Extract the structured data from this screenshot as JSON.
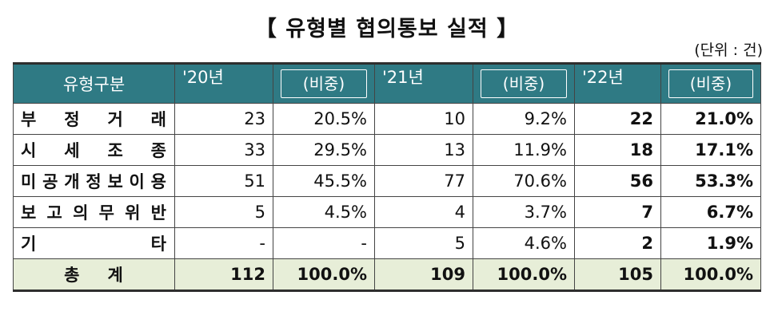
{
  "title": "【 유형별 협의통보 실적 】",
  "unit": "(단위 : 건)",
  "headers": {
    "category": "유형구분",
    "y20": "'20년",
    "y21": "'21년",
    "y22": "'22년",
    "ratio": "(비중)"
  },
  "rows": [
    {
      "cat_chars": [
        "부",
        "정",
        "거",
        "래"
      ],
      "y20": "23",
      "r20": "20.5%",
      "y21": "10",
      "r21": "9.2%",
      "y22": "22",
      "r22": "21.0%"
    },
    {
      "cat_chars": [
        "시",
        "세",
        "조",
        "종"
      ],
      "y20": "33",
      "r20": "29.5%",
      "y21": "13",
      "r21": "11.9%",
      "y22": "18",
      "r22": "17.1%"
    },
    {
      "cat_chars": [
        "미",
        "공",
        "개",
        "정",
        "보",
        "이",
        "용"
      ],
      "y20": "51",
      "r20": "45.5%",
      "y21": "77",
      "r21": "70.6%",
      "y22": "56",
      "r22": "53.3%"
    },
    {
      "cat_chars": [
        "보",
        "고",
        "의",
        "무",
        "위",
        "반"
      ],
      "y20": "5",
      "r20": "4.5%",
      "y21": "4",
      "r21": "3.7%",
      "y22": "7",
      "r22": "6.7%"
    },
    {
      "cat_chars": [
        "기",
        "타"
      ],
      "y20": "-",
      "r20": "-",
      "y21": "5",
      "r21": "4.6%",
      "y22": "2",
      "r22": "1.9%"
    }
  ],
  "total": {
    "cat_chars": [
      "총",
      "계"
    ],
    "y20": "112",
    "r20": "100.0%",
    "y21": "109",
    "r21": "100.0%",
    "y22": "105",
    "r22": "100.0%"
  }
}
